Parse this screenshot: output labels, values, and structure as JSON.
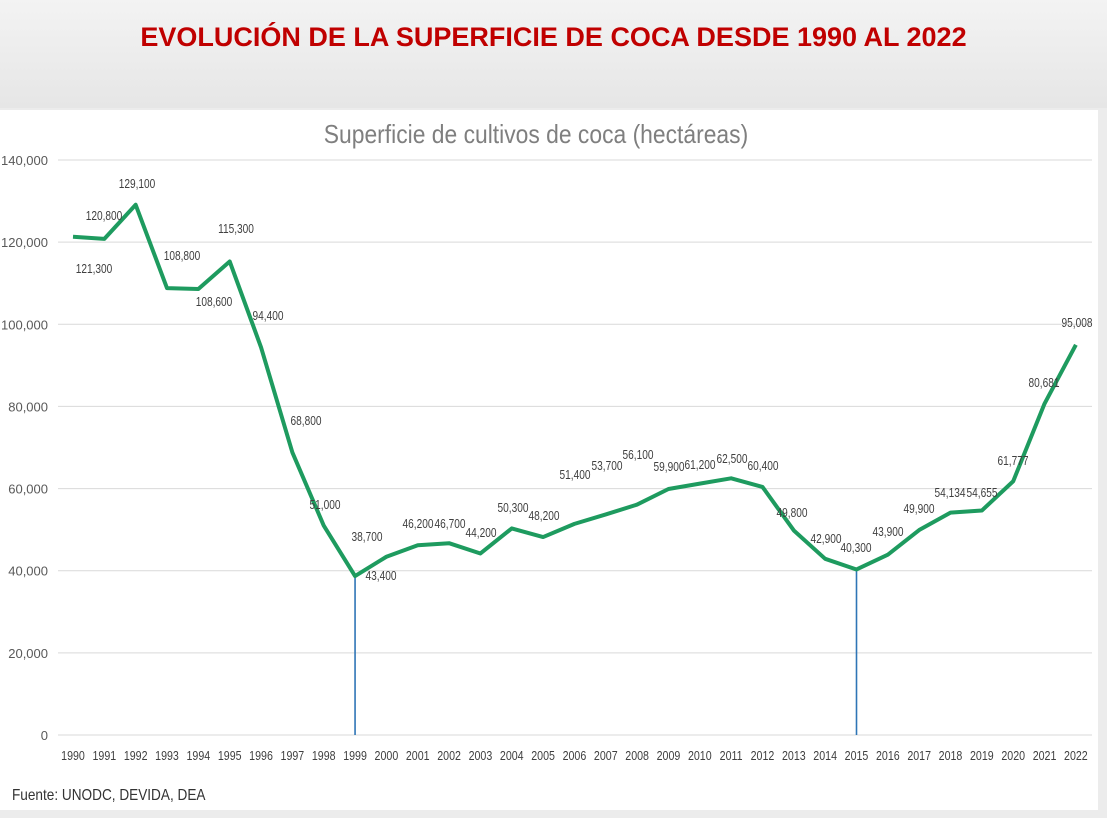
{
  "page_title": "EVOLUCIÓN DE LA SUPERFICIE DE COCA DESDE 1990 AL 2022",
  "source": "Fuente:  UNODC, DEVIDA, DEA",
  "colors": {
    "title": "#c00000",
    "line": "#1e9b5f",
    "highlight_lines": "#2e75b6",
    "grid": "#d9d9d9"
  },
  "chart_data": {
    "type": "line",
    "title": "Superficie de cultivos de coca (hectáreas)",
    "xlabel": "",
    "ylabel": "",
    "ylim": [
      0,
      140000
    ],
    "yticks": [
      "0",
      "20,000",
      "40,000",
      "60,000",
      "80,000",
      "100,000",
      "120,000",
      "140,000"
    ],
    "grid": true,
    "legend": "none",
    "x": [
      "1990",
      "1991",
      "1992",
      "1993",
      "1994",
      "1995",
      "1996",
      "1997",
      "1998",
      "1999",
      "2000",
      "2001",
      "2002",
      "2003",
      "2004",
      "2005",
      "2006",
      "2007",
      "2008",
      "2009",
      "2010",
      "2011",
      "2012",
      "2013",
      "2014",
      "2015",
      "2016",
      "2017",
      "2018",
      "2019",
      "2020",
      "2021",
      "2022"
    ],
    "values": [
      121300,
      120800,
      129100,
      108800,
      108600,
      115300,
      94400,
      68800,
      51000,
      38700,
      43400,
      46200,
      46700,
      44200,
      50300,
      48200,
      51400,
      53700,
      56100,
      59900,
      61200,
      62500,
      60400,
      49800,
      42900,
      40300,
      43900,
      49900,
      54134,
      54655,
      61777,
      80681,
      95008
    ],
    "data_labels": [
      "121,300",
      "120,800",
      "129,100",
      "108,800",
      "108,600",
      "115,300",
      "94,400",
      "68,800",
      "51,000",
      "38,700",
      "43,400",
      "46,200",
      "46,700",
      "44,200",
      "50,300",
      "48,200",
      "51,400",
      "53,700",
      "56,100",
      "59,900",
      "61,200",
      "62,500",
      "60,400",
      "49,800",
      "42,900",
      "40,300",
      "43,900",
      "49,900",
      "54,134",
      "54,655",
      "61,777",
      "80,681",
      "95,008"
    ],
    "highlighted_years": [
      "1999",
      "2015"
    ]
  }
}
